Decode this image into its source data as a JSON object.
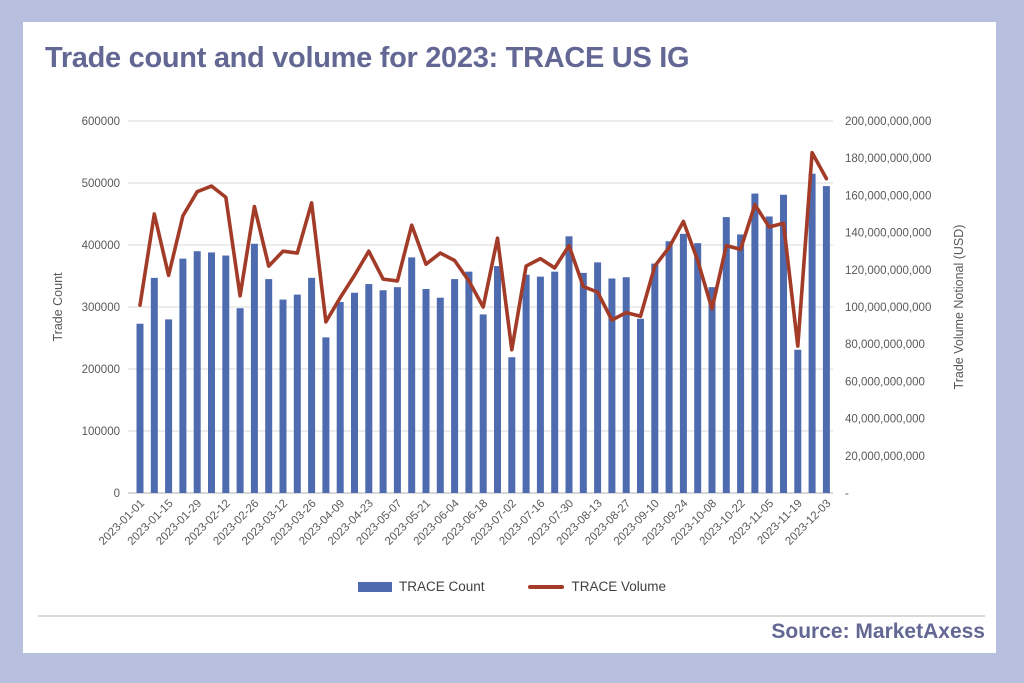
{
  "header": {
    "title": "Trade count and volume for 2023: TRACE US IG"
  },
  "footer": {
    "source": "Source: MarketAxess"
  },
  "legend": [
    {
      "label": "TRACE Count",
      "type": "bar"
    },
    {
      "label": "TRACE Volume",
      "type": "line"
    }
  ],
  "colors": {
    "bar": "#4e6bb0",
    "line": "#a23c28",
    "title_text": "#636794",
    "axis_text": "#595959",
    "gridline": "#d9d9d9",
    "axis_line": "#bfbfbf",
    "frame": "#b8bede"
  },
  "chart_data": {
    "type": "bar",
    "subtype": "dual-axis bar+line, weekly data",
    "title": "Trade count and volume for 2023: TRACE US IG",
    "grid": true,
    "legend_position": "bottom",
    "categories": [
      "2023-01-01",
      "2023-01-08",
      "2023-01-15",
      "2023-01-22",
      "2023-01-29",
      "2023-02-05",
      "2023-02-12",
      "2023-02-19",
      "2023-02-26",
      "2023-03-05",
      "2023-03-12",
      "2023-03-19",
      "2023-03-26",
      "2023-04-02",
      "2023-04-09",
      "2023-04-16",
      "2023-04-23",
      "2023-04-30",
      "2023-05-07",
      "2023-05-14",
      "2023-05-21",
      "2023-05-28",
      "2023-06-04",
      "2023-06-11",
      "2023-06-18",
      "2023-06-25",
      "2023-07-02",
      "2023-07-09",
      "2023-07-16",
      "2023-07-23",
      "2023-07-30",
      "2023-08-06",
      "2023-08-13",
      "2023-08-20",
      "2023-08-27",
      "2023-09-03",
      "2023-09-10",
      "2023-09-17",
      "2023-09-24",
      "2023-10-01",
      "2023-10-08",
      "2023-10-15",
      "2023-10-22",
      "2023-10-29",
      "2023-11-05",
      "2023-11-12",
      "2023-11-19",
      "2023-11-26",
      "2023-12-03"
    ],
    "x_tick_labels": [
      "2023-01-01",
      "2023-01-15",
      "2023-01-29",
      "2023-02-12",
      "2023-02-26",
      "2023-03-12",
      "2023-03-26",
      "2023-04-09",
      "2023-04-23",
      "2023-05-07",
      "2023-05-21",
      "2023-06-04",
      "2023-06-18",
      "2023-07-02",
      "2023-07-16",
      "2023-07-30",
      "2023-08-13",
      "2023-08-27",
      "2023-09-10",
      "2023-09-24",
      "2023-10-08",
      "2023-10-22",
      "2023-11-05",
      "2023-11-19",
      "2023-12-03"
    ],
    "series": [
      {
        "name": "TRACE Count",
        "type": "bar",
        "axis": "left",
        "values": [
          273000,
          347000,
          280000,
          378000,
          390000,
          388000,
          383000,
          298000,
          402000,
          345000,
          312000,
          320000,
          347000,
          251000,
          308000,
          323000,
          337000,
          327000,
          332000,
          380000,
          329000,
          315000,
          345000,
          357000,
          288000,
          366000,
          219000,
          352000,
          349000,
          357000,
          414000,
          355000,
          372000,
          346000,
          348000,
          281000,
          370000,
          406000,
          418000,
          403000,
          332000,
          445000,
          417000,
          483000,
          446000,
          481000,
          231000,
          515000,
          495000
        ]
      },
      {
        "name": "TRACE Volume",
        "type": "line",
        "axis": "right",
        "values": [
          101000000000,
          150000000000,
          117000000000,
          149000000000,
          162000000000,
          165000000000,
          159000000000,
          106000000000,
          154000000000,
          122000000000,
          130000000000,
          129000000000,
          156000000000,
          92000000000,
          105000000000,
          117000000000,
          130000000000,
          115000000000,
          114000000000,
          144000000000,
          123000000000,
          129000000000,
          125000000000,
          114000000000,
          100000000000,
          137000000000,
          77000000000,
          122000000000,
          126000000000,
          121000000000,
          133000000000,
          111000000000,
          108000000000,
          93000000000,
          97000000000,
          95000000000,
          122000000000,
          132000000000,
          146000000000,
          125000000000,
          99000000000,
          133000000000,
          131000000000,
          155000000000,
          143000000000,
          145000000000,
          79000000000,
          183000000000,
          169000000000
        ]
      }
    ],
    "left_axis": {
      "label": "Trade Count",
      "min": 0,
      "max": 600000,
      "step": 100000,
      "tick_labels": [
        "600000",
        "500000",
        "400000",
        "300000",
        "200000",
        "100000",
        "0"
      ]
    },
    "right_axis": {
      "label": "Trade Volume Notional (USD)",
      "min": 0,
      "max": 200000000000,
      "step": 20000000000,
      "tick_labels": [
        "200,000,000,000",
        "180,000,000,000",
        "160,000,000,000",
        "140,000,000,000",
        "120,000,000,000",
        "100,000,000,000",
        "80,000,000,000",
        "60,000,000,000",
        "40,000,000,000",
        "20,000,000,000",
        "-"
      ]
    }
  }
}
